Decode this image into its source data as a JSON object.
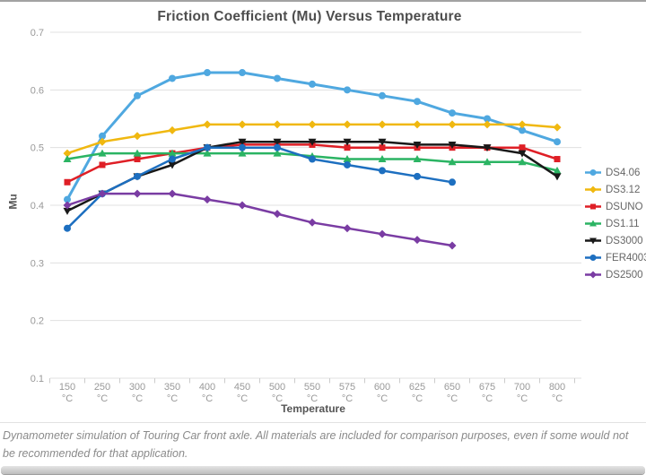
{
  "page": {
    "caption": "Dynamometer simulation of Touring Car front axle. All materials are included for comparison purposes, even if some would not be recommended for that application."
  },
  "chart_data": {
    "type": "line",
    "title": "Friction Coefficient (Mu) Versus Temperature",
    "xlabel": "Temperature",
    "ylabel": "Mu",
    "x_unit": "°C",
    "categories": [
      "150",
      "250",
      "300",
      "350",
      "400",
      "450",
      "500",
      "550",
      "575",
      "600",
      "625",
      "650",
      "675",
      "700",
      "800"
    ],
    "y_ticks": [
      "0.7",
      "0.6",
      "0.5",
      "0.4",
      "0.3",
      "0.2",
      "0.1"
    ],
    "ylim": [
      0.1,
      0.7
    ],
    "grid": "horizontal",
    "legend_position": "right",
    "series": [
      {
        "name": "DS4.06",
        "color": "#4FA8E0",
        "marker": "circle",
        "values": [
          0.41,
          0.52,
          0.59,
          0.62,
          0.63,
          0.63,
          0.62,
          0.61,
          0.6,
          0.59,
          0.58,
          0.56,
          0.55,
          0.53,
          0.51
        ]
      },
      {
        "name": "DS3.12",
        "color": "#F0B810",
        "marker": "diamond",
        "values": [
          0.49,
          0.51,
          0.52,
          0.53,
          0.54,
          0.54,
          0.54,
          0.54,
          0.54,
          0.54,
          0.54,
          0.54,
          0.54,
          0.54,
          0.535
        ]
      },
      {
        "name": "DSUNO",
        "color": "#DF1F26",
        "marker": "square",
        "values": [
          0.44,
          0.47,
          0.48,
          0.49,
          0.5,
          0.505,
          0.505,
          0.505,
          0.5,
          0.5,
          0.5,
          0.5,
          0.5,
          0.5,
          0.48
        ]
      },
      {
        "name": "DS1.11",
        "color": "#2BB463",
        "marker": "triangle-up",
        "values": [
          0.48,
          0.49,
          0.49,
          0.49,
          0.49,
          0.49,
          0.49,
          0.485,
          0.48,
          0.48,
          0.48,
          0.475,
          0.475,
          0.475,
          0.46
        ]
      },
      {
        "name": "DS3000",
        "color": "#191919",
        "marker": "triangle-down",
        "values": [
          0.39,
          0.42,
          0.45,
          0.47,
          0.5,
          0.51,
          0.51,
          0.51,
          0.51,
          0.51,
          0.505,
          0.505,
          0.5,
          0.49,
          0.45
        ]
      },
      {
        "name": "FER4003",
        "color": "#1D6FC0",
        "marker": "circle",
        "values": [
          0.36,
          0.42,
          0.45,
          0.48,
          0.5,
          0.5,
          0.5,
          0.48,
          0.47,
          0.46,
          0.45,
          0.44,
          null,
          null,
          null
        ]
      },
      {
        "name": "DS2500",
        "color": "#7A3CA3",
        "marker": "diamond",
        "values": [
          0.4,
          0.42,
          0.42,
          0.42,
          0.41,
          0.4,
          0.385,
          0.37,
          0.36,
          0.35,
          0.34,
          0.33,
          null,
          null,
          null
        ]
      }
    ]
  }
}
